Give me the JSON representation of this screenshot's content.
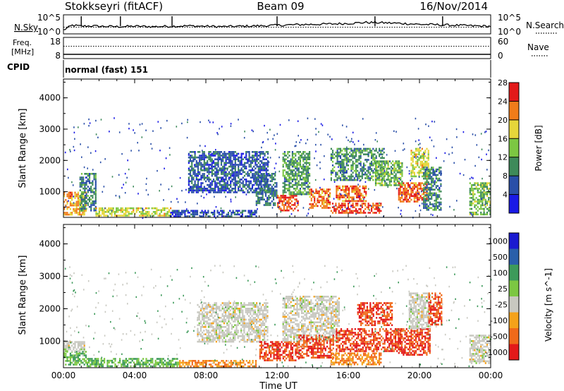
{
  "header": {
    "title": "Stokkseyri (fitACF)",
    "beam": "Beam 09",
    "date": "16/Nov/2014"
  },
  "chart_data": [
    {
      "type": "line",
      "panel": "noise",
      "labels_left": [
        "N.Sky"
      ],
      "labels_right": [
        "N.Search"
      ],
      "left_ticks": [
        "10^5",
        "10^0"
      ],
      "right_ticks": [
        "10^5",
        "10^0"
      ],
      "x_range_hours": [
        0,
        24
      ],
      "series": [
        {
          "name": "N.Sky",
          "style": "solid",
          "x": [
            0,
            0.5,
            1,
            1.5,
            2,
            3,
            4,
            5,
            6,
            7,
            8,
            9,
            10,
            11,
            12,
            13,
            14,
            15,
            16,
            17,
            18,
            19,
            20,
            21,
            22,
            23,
            24
          ],
          "y_fraction": [
            0.2,
            0.45,
            0.4,
            0.42,
            0.4,
            0.38,
            0.4,
            0.38,
            0.4,
            0.42,
            0.4,
            0.38,
            0.4,
            0.42,
            0.45,
            0.48,
            0.5,
            0.52,
            0.55,
            0.6,
            0.58,
            0.55,
            0.5,
            0.48,
            0.45,
            0.42,
            0.4
          ]
        },
        {
          "name": "N.Search",
          "style": "dotted",
          "x": [
            0,
            24
          ],
          "y_fraction": [
            0.35,
            0.35
          ]
        }
      ],
      "spikes_hours": [
        1.0,
        6.1,
        12.0,
        21.3,
        3.2,
        17.5
      ]
    },
    {
      "type": "line",
      "panel": "frequency",
      "labels_left": [
        "Freq.",
        "[MHz]"
      ],
      "labels_right": [
        "Nave"
      ],
      "left_ticks": [
        18,
        8
      ],
      "right_ticks": [
        60,
        0
      ],
      "x_range_hours": [
        0,
        24
      ],
      "series": [
        {
          "name": "Freq.",
          "style": "solid",
          "x": [
            0,
            24
          ],
          "y": [
            10,
            10
          ]
        },
        {
          "name": "Nave",
          "style": "dotted",
          "x": [
            0,
            24
          ],
          "y": [
            35,
            35
          ]
        }
      ]
    },
    {
      "type": "text",
      "panel": "cpid",
      "label": "CPID",
      "value": "normal (fast) 151"
    },
    {
      "type": "heatmap",
      "panel": "power",
      "xlabel": "",
      "ylabel": "Slant Range [km]",
      "x_range_hours": [
        0,
        24
      ],
      "ylim": [
        180,
        4600
      ],
      "y_ticks": [
        1000,
        2000,
        3000,
        4000
      ],
      "colorbar": {
        "label": "Power [dB]",
        "ticks": [
          4,
          8,
          12,
          16,
          20,
          24,
          28
        ],
        "colors": [
          "#1a1ae6",
          "#2a4fa8",
          "#3e8a5a",
          "#7cc742",
          "#e6d63a",
          "#f07c1a",
          "#e31a1a"
        ],
        "range": [
          0,
          30
        ]
      },
      "echo_regions": [
        {
          "t0": 0.0,
          "t1": 1.3,
          "r0": 250,
          "r1": 1000,
          "value": 22
        },
        {
          "t0": 0.9,
          "t1": 1.8,
          "r0": 400,
          "r1": 1600,
          "value": 10
        },
        {
          "t0": 1.8,
          "t1": 6.0,
          "r0": 250,
          "r1": 500,
          "value": 18
        },
        {
          "t0": 6.0,
          "t1": 10.8,
          "r0": 230,
          "r1": 420,
          "value": 6
        },
        {
          "t0": 7.0,
          "t1": 11.5,
          "r0": 1000,
          "r1": 2300,
          "value": 7
        },
        {
          "t0": 10.8,
          "t1": 12.0,
          "r0": 600,
          "r1": 1600,
          "value": 9
        },
        {
          "t0": 12.0,
          "t1": 13.2,
          "r0": 400,
          "r1": 900,
          "value": 26
        },
        {
          "t0": 12.3,
          "t1": 13.8,
          "r0": 900,
          "r1": 2300,
          "value": 12
        },
        {
          "t0": 13.8,
          "t1": 15.0,
          "r0": 500,
          "r1": 1100,
          "value": 24
        },
        {
          "t0": 15.0,
          "t1": 17.8,
          "r0": 300,
          "r1": 650,
          "value": 27
        },
        {
          "t0": 15.3,
          "t1": 17.0,
          "r0": 700,
          "r1": 1200,
          "value": 24
        },
        {
          "t0": 15.0,
          "t1": 18.0,
          "r0": 1400,
          "r1": 2400,
          "value": 11
        },
        {
          "t0": 17.5,
          "t1": 19.0,
          "r0": 1200,
          "r1": 2000,
          "value": 14
        },
        {
          "t0": 18.8,
          "t1": 20.4,
          "r0": 700,
          "r1": 1300,
          "value": 25
        },
        {
          "t0": 19.5,
          "t1": 20.5,
          "r0": 1500,
          "r1": 2400,
          "value": 18
        },
        {
          "t0": 20.2,
          "t1": 21.2,
          "r0": 400,
          "r1": 1800,
          "value": 10
        },
        {
          "t0": 22.8,
          "t1": 24.0,
          "r0": 300,
          "r1": 1300,
          "value": 14
        }
      ]
    },
    {
      "type": "heatmap",
      "panel": "velocity",
      "xlabel": "Time UT",
      "ylabel": "Slant Range [km]",
      "x_range_hours": [
        0,
        24
      ],
      "x_ticks": [
        "00:00",
        "04:00",
        "08:00",
        "12:00",
        "16:00",
        "20:00",
        "00:00"
      ],
      "ylim": [
        180,
        4600
      ],
      "y_ticks": [
        1000,
        2000,
        3000,
        4000
      ],
      "colorbar": {
        "label": "Velocity [m s^-1]",
        "ticks": [
          "1000",
          "500",
          "100",
          "25",
          "-25",
          "-100",
          "-500",
          "-1000"
        ],
        "colors": [
          "#1a1ad0",
          "#2a5faa",
          "#3d9a5a",
          "#7cc742",
          "#c8c8c0",
          "#f5a21a",
          "#f06a1a",
          "#e31a1a"
        ]
      },
      "echo_regions": [
        {
          "t0": 0.0,
          "t1": 1.3,
          "r0": 250,
          "r1": 700,
          "value": 100
        },
        {
          "t0": 0.0,
          "t1": 1.2,
          "r0": 700,
          "r1": 1000,
          "value": 0
        },
        {
          "t0": 1.3,
          "t1": 6.5,
          "r0": 250,
          "r1": 480,
          "value": 100
        },
        {
          "t0": 6.5,
          "t1": 10.8,
          "r0": 230,
          "r1": 420,
          "value": -100
        },
        {
          "t0": 7.5,
          "t1": 11.5,
          "r0": 1000,
          "r1": 2200,
          "value": 0
        },
        {
          "t0": 11.0,
          "t1": 13.2,
          "r0": 400,
          "r1": 1000,
          "value": -500
        },
        {
          "t0": 12.3,
          "t1": 15.5,
          "r0": 1000,
          "r1": 2400,
          "value": 0
        },
        {
          "t0": 13.2,
          "t1": 15.2,
          "r0": 500,
          "r1": 1200,
          "value": -500
        },
        {
          "t0": 15.0,
          "t1": 17.8,
          "r0": 300,
          "r1": 650,
          "value": -100
        },
        {
          "t0": 15.3,
          "t1": 19.0,
          "r0": 700,
          "r1": 1400,
          "value": -500
        },
        {
          "t0": 16.5,
          "t1": 18.5,
          "r0": 1500,
          "r1": 2200,
          "value": -500
        },
        {
          "t0": 18.8,
          "t1": 20.6,
          "r0": 600,
          "r1": 1400,
          "value": -500
        },
        {
          "t0": 19.4,
          "t1": 20.6,
          "r0": 1400,
          "r1": 2500,
          "value": 0
        },
        {
          "t0": 20.5,
          "t1": 21.2,
          "r0": 1500,
          "r1": 2500,
          "value": -500
        },
        {
          "t0": 22.8,
          "t1": 24.0,
          "r0": 300,
          "r1": 1200,
          "value": 0
        }
      ]
    }
  ]
}
